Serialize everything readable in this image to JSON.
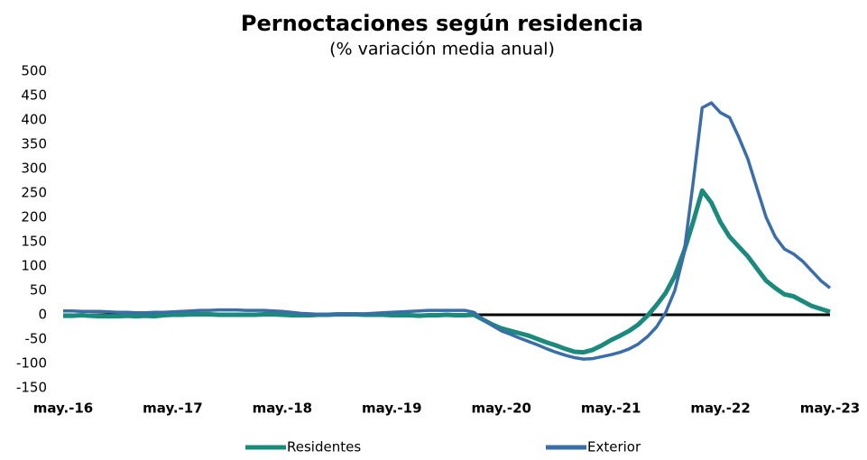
{
  "chart_data": {
    "type": "line",
    "title": "Pernoctaciones según residencia",
    "subtitle": "(% variación media anual)",
    "categories": [
      "may.-16",
      null,
      null,
      null,
      null,
      null,
      null,
      null,
      null,
      null,
      null,
      null,
      "may.-17",
      null,
      null,
      null,
      null,
      null,
      null,
      null,
      null,
      null,
      null,
      null,
      "may.-18",
      null,
      null,
      null,
      null,
      null,
      null,
      null,
      null,
      null,
      null,
      null,
      "may.-19",
      null,
      null,
      null,
      null,
      null,
      null,
      null,
      null,
      null,
      null,
      null,
      "may.-20",
      null,
      null,
      null,
      null,
      null,
      null,
      null,
      null,
      null,
      null,
      null,
      "may.-21",
      null,
      null,
      null,
      null,
      null,
      null,
      null,
      null,
      null,
      null,
      null,
      "may.-22",
      null,
      null,
      null,
      null,
      null,
      null,
      null,
      null,
      null,
      null,
      null,
      "may.-23"
    ],
    "series": [
      {
        "name": "Residentes",
        "color": "#1b8a7d",
        "values": [
          -2,
          -2,
          -1,
          -2,
          -3,
          -3,
          -3,
          -2,
          -3,
          -2,
          -3,
          -1,
          0,
          0,
          1,
          1,
          1,
          0,
          0,
          0,
          0,
          0,
          1,
          1,
          0,
          -1,
          -1,
          -1,
          0,
          0,
          1,
          1,
          1,
          0,
          0,
          0,
          -1,
          -1,
          -1,
          -2,
          -1,
          -1,
          0,
          -1,
          -1,
          0,
          -10,
          -20,
          -28,
          -33,
          -38,
          -43,
          -50,
          -57,
          -63,
          -70,
          -76,
          -77,
          -72,
          -63,
          -52,
          -43,
          -33,
          -20,
          -2,
          20,
          45,
          80,
          130,
          190,
          255,
          230,
          190,
          160,
          140,
          120,
          95,
          70,
          55,
          42,
          38,
          28,
          18,
          12,
          6
        ]
      },
      {
        "name": "Exterior",
        "color": "#3b6ea8",
        "values": [
          8,
          8,
          7,
          7,
          7,
          6,
          5,
          5,
          4,
          4,
          5,
          5,
          6,
          7,
          8,
          9,
          9,
          10,
          10,
          10,
          9,
          9,
          9,
          8,
          7,
          5,
          3,
          2,
          1,
          1,
          1,
          1,
          2,
          2,
          3,
          4,
          5,
          6,
          7,
          8,
          9,
          9,
          9,
          9,
          9,
          5,
          -10,
          -22,
          -33,
          -40,
          -48,
          -55,
          -62,
          -70,
          -77,
          -83,
          -88,
          -91,
          -90,
          -86,
          -82,
          -77,
          -70,
          -60,
          -45,
          -25,
          5,
          50,
          125,
          270,
          425,
          435,
          415,
          405,
          365,
          320,
          260,
          200,
          160,
          135,
          125,
          110,
          90,
          70,
          55
        ]
      }
    ],
    "ylim": [
      -150,
      500
    ],
    "yticks": [
      -150,
      -100,
      -50,
      0,
      50,
      100,
      150,
      200,
      250,
      300,
      350,
      400,
      450,
      500
    ],
    "legend": "bottom"
  }
}
